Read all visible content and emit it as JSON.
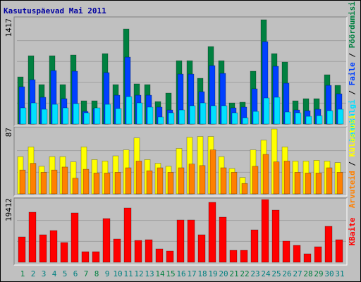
{
  "title": "Kasutuspäevad Mai 2011",
  "legend_separator": " / ",
  "categories": [
    "1",
    "2",
    "3",
    "4",
    "5",
    "6",
    "7",
    "8",
    "9",
    "10",
    "11",
    "12",
    "13",
    "14",
    "15",
    "16",
    "17",
    "18",
    "19",
    "20",
    "21",
    "22",
    "23",
    "24",
    "25",
    "26",
    "27",
    "28",
    "29",
    "30",
    "31"
  ],
  "weekend": [
    true,
    false,
    false,
    false,
    false,
    false,
    true,
    true,
    false,
    false,
    false,
    false,
    false,
    true,
    true,
    false,
    false,
    false,
    false,
    false,
    true,
    true,
    false,
    false,
    false,
    false,
    false,
    true,
    true,
    false,
    false
  ],
  "weekday_color": "#008080",
  "weekend_color": "#008040",
  "chart_data": [
    {
      "type": "bar",
      "ylim": [
        0,
        1417
      ],
      "yticks": [
        1417
      ],
      "series": [
        {
          "name": "Pöördumisi",
          "color": "#008040",
          "values": [
            641,
            928,
            536,
            928,
            536,
            938,
            316,
            316,
            957,
            536,
            1292,
            546,
            536,
            306,
            421,
            861,
            861,
            622,
            1053,
            861,
            287,
            297,
            718,
            1417,
            957,
            842,
            316,
            345,
            345,
            670,
            526
          ]
        },
        {
          "name": "Faile",
          "color": "#0040ff",
          "values": [
            507,
            603,
            364,
            727,
            345,
            718,
            172,
            211,
            699,
            392,
            909,
            392,
            392,
            230,
            191,
            679,
            679,
            440,
            794,
            689,
            220,
            230,
            479,
            1120,
            785,
            555,
            191,
            182,
            201,
            526,
            411
          ]
        },
        {
          "name": "Lehekülgi",
          "color": "#00e0ff",
          "values": [
            220,
            287,
            201,
            268,
            220,
            278,
            153,
            220,
            268,
            211,
            373,
            287,
            230,
            96,
            153,
            191,
            249,
            287,
            249,
            249,
            153,
            86,
            172,
            354,
            364,
            163,
            153,
            105,
            115,
            182,
            201
          ]
        }
      ]
    },
    {
      "type": "bar",
      "ylim": [
        0,
        87
      ],
      "yticks": [
        87
      ],
      "series": [
        {
          "name": "Külastusi",
          "color": "#ffff00",
          "values": [
            50,
            63,
            37,
            50,
            50,
            43,
            63,
            46,
            44,
            51,
            59,
            75,
            46,
            41,
            37,
            61,
            76,
            77,
            77,
            50,
            34,
            22,
            59,
            72,
            87,
            63,
            44,
            44,
            45,
            44,
            42
          ]
        },
        {
          "name": "Arvuteid",
          "color": "#ff8000",
          "values": [
            32,
            41,
            29,
            32,
            36,
            21,
            33,
            28,
            28,
            29,
            35,
            44,
            31,
            35,
            29,
            35,
            40,
            38,
            59,
            35,
            29,
            14,
            37,
            53,
            43,
            44,
            29,
            28,
            28,
            35,
            29
          ]
        }
      ]
    },
    {
      "type": "bar",
      "ylim": [
        0,
        19412
      ],
      "yticks": [
        19412
      ],
      "series": [
        {
          "name": "KBaite",
          "color": "#ff0000",
          "values": [
            7850,
            15486,
            8506,
            9815,
            6107,
            15268,
            3272,
            3272,
            13523,
            7198,
            16795,
            6761,
            6980,
            4144,
            3490,
            13087,
            13087,
            8506,
            18540,
            13959,
            3708,
            3708,
            10033,
            19412,
            16140,
            6543,
            5235,
            2617,
            4799,
            11124,
            6980
          ]
        }
      ]
    }
  ]
}
